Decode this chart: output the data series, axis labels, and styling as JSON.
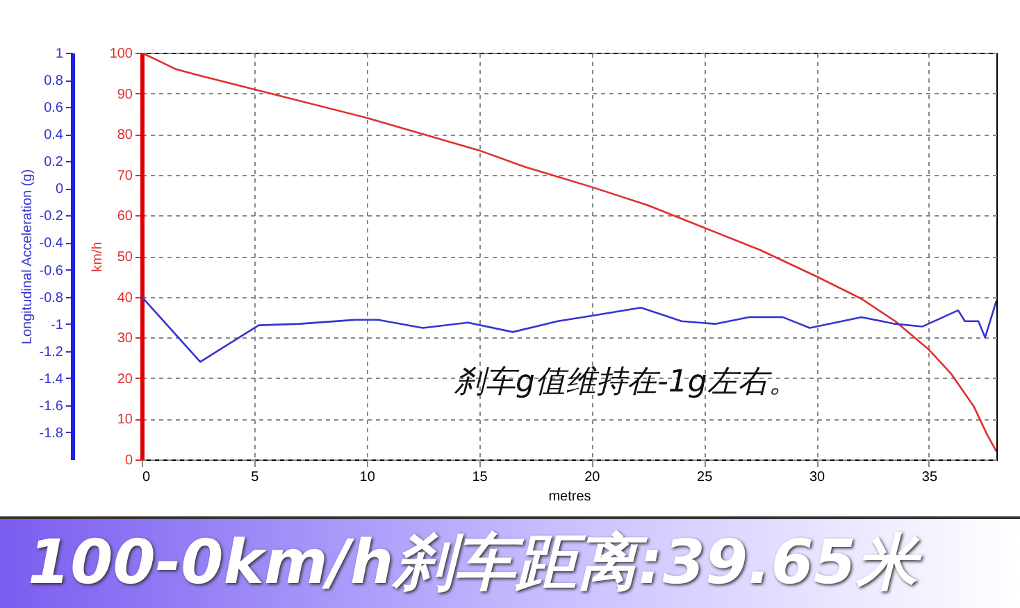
{
  "chart_data": {
    "type": "line",
    "xlabel": "metres",
    "ylabel": "km/h",
    "y2label": "Longitudinal Acceleration (g)",
    "xlim": [
      0,
      38
    ],
    "xticks": [
      0,
      5,
      10,
      15,
      20,
      25,
      30,
      35
    ],
    "ylim": [
      0,
      100
    ],
    "yticks": [
      0,
      10,
      20,
      30,
      40,
      50,
      60,
      70,
      80,
      90,
      100
    ],
    "y2lim": [
      -2,
      1
    ],
    "y2ticks": [
      1,
      0.8,
      0.6,
      0.4,
      0.2,
      0,
      -0.2,
      -0.4,
      -0.6,
      -0.8,
      -1,
      -1.2,
      -1.4,
      -1.6,
      -1.8
    ],
    "grid": true,
    "series": [
      {
        "color": "#e03030",
        "x": [
          0,
          1.5,
          2.5,
          5,
          10,
          12.5,
          15,
          17,
          20,
          22.5,
          25,
          27.5,
          30,
          32,
          33.5,
          35,
          36,
          37,
          37.6,
          38
        ],
        "values": [
          100,
          96,
          94.5,
          91,
          84,
          80,
          76,
          72,
          67,
          62.5,
          57,
          51.5,
          45,
          39.5,
          34,
          27,
          21,
          13,
          6,
          2
        ]
      },
      {
        "color": "#3535d0",
        "axis": "y2",
        "x": [
          0,
          2.6,
          5.2,
          7,
          9.5,
          10.5,
          12.5,
          14.5,
          16.5,
          18.5,
          20,
          22.2,
          24,
          25.5,
          27,
          28.5,
          29.7,
          32,
          33.5,
          34.7,
          36.3,
          36.6,
          37.2,
          37.5,
          38
        ],
        "values": [
          -0.8,
          -1.28,
          -1.01,
          -1.0,
          -0.97,
          -0.97,
          -1.03,
          -0.99,
          -1.06,
          -0.98,
          -0.94,
          -0.88,
          -0.98,
          -1.0,
          -0.95,
          -0.95,
          -1.03,
          -0.95,
          -1.0,
          -1.02,
          -0.9,
          -0.98,
          -0.98,
          -1.1,
          -0.83
        ]
      }
    ],
    "annotations": [
      "刹车g值维持在-1g左右。",
      "100-0km/h刹车距离:39.65米"
    ]
  }
}
